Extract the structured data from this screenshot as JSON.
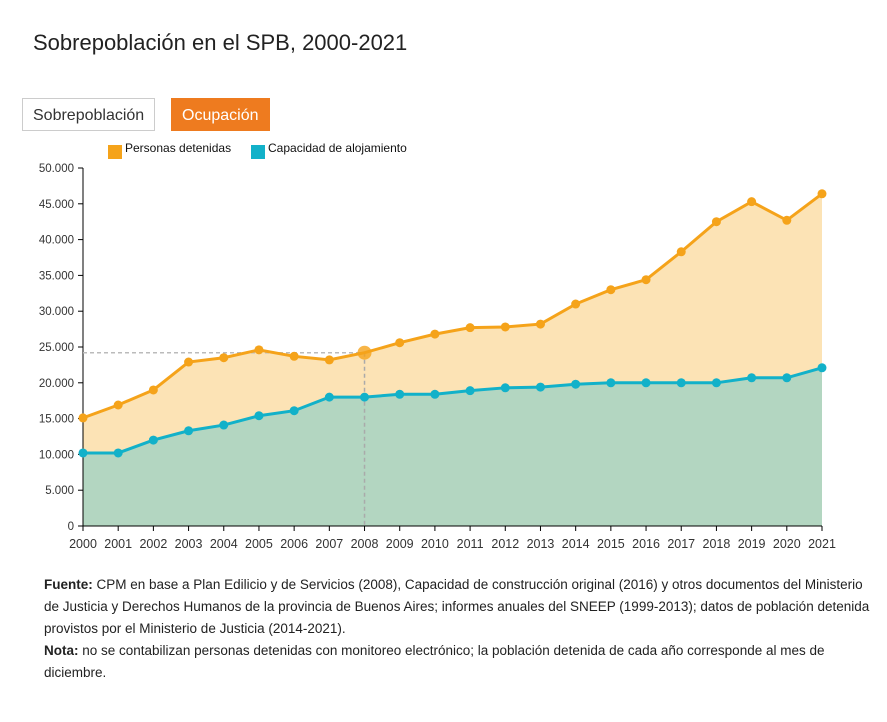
{
  "title": "Sobrepoblación en el SPB, 2000-2021",
  "buttons": [
    {
      "label": "Sobrepoblación",
      "active": false
    },
    {
      "label": "Ocupación",
      "active": true
    }
  ],
  "colors": {
    "detenidas": "#f5a31a",
    "detenidas_fill": "#fce3b5",
    "capacidad": "#12b1c9",
    "capacidad_fill": "#b3d6c1",
    "active_button": "#ee7b1f"
  },
  "chart_data": {
    "type": "area",
    "title": "",
    "xlabel": "",
    "ylabel": "",
    "ylim": [
      0,
      50000
    ],
    "yticks": [
      "0",
      "5.000",
      "10.000",
      "15.000",
      "20.000",
      "25.000",
      "30.000",
      "35.000",
      "40.000",
      "45.000",
      "50.000"
    ],
    "x": [
      "2000",
      "2001",
      "2002",
      "2003",
      "2004",
      "2005",
      "2006",
      "2007",
      "2008",
      "2009",
      "2010",
      "2011",
      "2012",
      "2013",
      "2014",
      "2015",
      "2016",
      "2017",
      "2018",
      "2019",
      "2020",
      "2021"
    ],
    "legend_position": "top",
    "highlight_x": "2008",
    "series": [
      {
        "name": "Personas detenidas",
        "values": [
          15100,
          16900,
          19000,
          22900,
          23500,
          24600,
          23700,
          23200,
          24200,
          25600,
          26800,
          27700,
          27800,
          28200,
          31000,
          33000,
          34400,
          38300,
          42500,
          45300,
          42700,
          46400
        ]
      },
      {
        "name": "Capacidad de alojamiento",
        "values": [
          10200,
          10200,
          12000,
          13300,
          14100,
          15400,
          16100,
          18000,
          18000,
          18400,
          18400,
          18900,
          19300,
          19400,
          19800,
          20000,
          20000,
          20000,
          20000,
          20700,
          20700,
          22100
        ]
      }
    ]
  },
  "notes": {
    "fuente_label": "Fuente:",
    "fuente_text": " CPM en base a Plan Edilicio y de Servicios (2008), Capacidad de construcción original (2016) y otros documentos del Ministerio de Justicia y Derechos Humanos de la provincia de Buenos Aires; informes anuales del SNEEP (1999-2013); datos de población detenida provistos por el Ministerio de Justicia (2014-2021).",
    "nota_label": "Nota:",
    "nota_text": " no se contabilizan personas detenidas con monitoreo electrónico; la población detenida de cada año corresponde al mes de diciembre."
  }
}
